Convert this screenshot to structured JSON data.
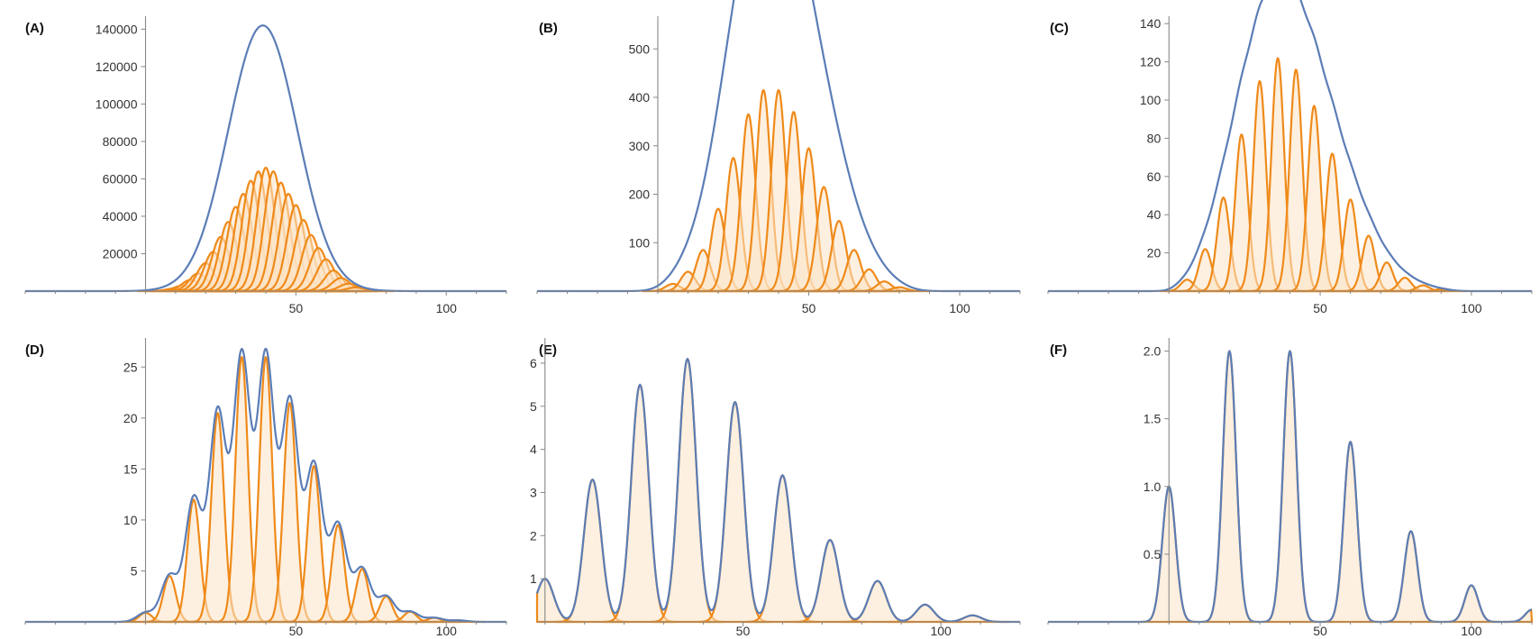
{
  "colors": {
    "envelope": "#5b7db6",
    "component_line": "#ef8a1a",
    "component_fill": "#fbe3c6"
  },
  "chart_data": [
    {
      "type": "area",
      "panel_label": "(A)",
      "xlim": [
        -40,
        120
      ],
      "ylim": [
        0,
        145000
      ],
      "x_ticks": [
        50,
        100
      ],
      "x_tick_labels": [
        "50",
        "100"
      ],
      "y_ticks": [
        20000,
        40000,
        60000,
        80000,
        100000,
        120000,
        140000
      ],
      "y_tick_labels": [
        "20000",
        "40000",
        "60000",
        "80000",
        "100000",
        "120000",
        "140000"
      ],
      "components": {
        "centers": [
          10,
          12.5,
          15,
          17.5,
          20,
          22.5,
          25,
          27.5,
          30,
          32.5,
          35,
          37.5,
          40,
          42.5,
          45,
          47.5,
          50,
          52.5,
          55,
          57.5,
          60,
          62.5,
          65,
          67.5,
          70
        ],
        "peaks": [
          1500,
          3000,
          6000,
          9500,
          15000,
          21000,
          29000,
          37000,
          45000,
          52000,
          59000,
          64000,
          66000,
          64000,
          58000,
          52000,
          46000,
          38000,
          30000,
          23000,
          17000,
          11000,
          7000,
          4000,
          2000
        ],
        "sigma": 3.0
      },
      "envelope": {
        "center": 39,
        "peak": 142000,
        "sigma": 11.5
      }
    },
    {
      "type": "area",
      "panel_label": "(B)",
      "xlim": [
        -40,
        120
      ],
      "ylim": [
        0,
        560
      ],
      "x_ticks": [
        50,
        100
      ],
      "x_tick_labels": [
        "50",
        "100"
      ],
      "y_ticks": [
        100,
        200,
        300,
        400,
        500
      ],
      "y_tick_labels": [
        "100",
        "200",
        "300",
        "400",
        "500"
      ],
      "components": {
        "centers": [
          5,
          10,
          15,
          20,
          25,
          30,
          35,
          40,
          45,
          50,
          55,
          60,
          65,
          70,
          75,
          80
        ],
        "peaks": [
          15,
          40,
          85,
          170,
          275,
          365,
          415,
          415,
          370,
          295,
          215,
          145,
          85,
          45,
          20,
          8
        ],
        "sigma": 2.4
      },
      "envelope": {
        "centers": [
          5,
          10,
          15,
          20,
          25,
          30,
          35,
          40,
          45,
          50,
          55,
          60,
          65,
          70,
          75,
          80
        ],
        "peaks": [
          15,
          40,
          85,
          170,
          275,
          365,
          415,
          415,
          370,
          295,
          215,
          145,
          85,
          45,
          20,
          8
        ],
        "sigma": 4.4
      }
    },
    {
      "type": "area",
      "panel_label": "(C)",
      "xlim": [
        -40,
        120
      ],
      "ylim": [
        0,
        142
      ],
      "x_ticks": [
        50,
        100
      ],
      "x_tick_labels": [
        "50",
        "100"
      ],
      "y_ticks": [
        20,
        40,
        60,
        80,
        100,
        120,
        140
      ],
      "y_tick_labels": [
        "20",
        "40",
        "60",
        "80",
        "100",
        "120",
        "140"
      ],
      "components": {
        "centers": [
          6,
          12,
          18,
          24,
          30,
          36,
          42,
          48,
          54,
          60,
          66,
          72,
          78,
          84,
          90
        ],
        "peaks": [
          6,
          22,
          49,
          82,
          110,
          122,
          116,
          97,
          72,
          48,
          29,
          15,
          7,
          3,
          1
        ],
        "sigma": 2.1
      },
      "envelope": {
        "centers": [
          6,
          12,
          18,
          24,
          30,
          36,
          42,
          48,
          54,
          60,
          66,
          72,
          78,
          84,
          90
        ],
        "peaks": [
          6,
          22,
          49,
          82,
          110,
          122,
          116,
          97,
          72,
          48,
          29,
          15,
          7,
          3,
          1
        ],
        "sigma": 3.3
      }
    },
    {
      "type": "area",
      "panel_label": "(D)",
      "xlim": [
        -40,
        120
      ],
      "ylim": [
        0,
        27.5
      ],
      "x_ticks": [
        50,
        100
      ],
      "x_tick_labels": [
        "50",
        "100"
      ],
      "y_ticks": [
        5,
        10,
        15,
        20,
        25
      ],
      "y_tick_labels": [
        "5",
        "10",
        "15",
        "20",
        "25"
      ],
      "components": {
        "centers": [
          0,
          8,
          16,
          24,
          32,
          40,
          48,
          56,
          64,
          72,
          80,
          88,
          96,
          104
        ],
        "peaks": [
          0.9,
          4.5,
          12,
          20.5,
          26,
          26,
          21.5,
          15.3,
          9.5,
          5.2,
          2.5,
          1.0,
          0.4,
          0.15
        ],
        "sigma": 2.1
      },
      "envelope": {
        "centers": [
          0,
          8,
          16,
          24,
          32,
          40,
          48,
          56,
          64,
          72,
          80,
          88,
          96,
          104
        ],
        "peaks": [
          0.9,
          4.5,
          12,
          20.5,
          26,
          26,
          21.5,
          15.3,
          9.5,
          5.2,
          2.5,
          1.0,
          0.4,
          0.15
        ],
        "sigma": 2.8
      }
    },
    {
      "type": "area",
      "panel_label": "(E)",
      "xlim": [
        -2,
        120
      ],
      "ylim": [
        0,
        6.5
      ],
      "x_ticks": [
        50,
        100
      ],
      "x_tick_labels": [
        "50",
        "100"
      ],
      "y_ticks": [
        1,
        2,
        3,
        4,
        5,
        6
      ],
      "y_tick_labels": [
        "1",
        "2",
        "3",
        "4",
        "5",
        "6"
      ],
      "components": {
        "centers": [
          0,
          12,
          24,
          36,
          48,
          60,
          72,
          84,
          96,
          108
        ],
        "peaks": [
          1.0,
          3.3,
          5.5,
          6.1,
          5.1,
          3.4,
          1.9,
          0.95,
          0.4,
          0.15
        ],
        "sigma": 2.2
      },
      "envelope": {
        "centers": [
          0,
          12,
          24,
          36,
          48,
          60,
          72,
          84,
          96,
          108
        ],
        "peaks": [
          1.0,
          3.3,
          5.5,
          6.1,
          5.1,
          3.4,
          1.9,
          0.95,
          0.4,
          0.15
        ],
        "sigma": 2.2
      }
    },
    {
      "type": "area",
      "panel_label": "(F)",
      "xlim": [
        -40,
        120
      ],
      "ylim": [
        0,
        2.07
      ],
      "x_ticks": [
        50,
        100
      ],
      "x_tick_labels": [
        "50",
        "100"
      ],
      "y_ticks": [
        0.5,
        1.0,
        1.5,
        2.0
      ],
      "y_tick_labels": [
        "0.5",
        "1.0",
        "1.5",
        "2.0"
      ],
      "components": {
        "centers": [
          0,
          20,
          40,
          60,
          80,
          100,
          120
        ],
        "peaks": [
          1.0,
          2.0,
          2.0,
          1.33,
          0.67,
          0.27,
          0.09
        ],
        "sigma": 2.2
      },
      "envelope": {
        "centers": [
          0,
          20,
          40,
          60,
          80,
          100,
          120
        ],
        "peaks": [
          1.0,
          2.0,
          2.0,
          1.33,
          0.67,
          0.27,
          0.09
        ],
        "sigma": 2.2
      }
    }
  ]
}
